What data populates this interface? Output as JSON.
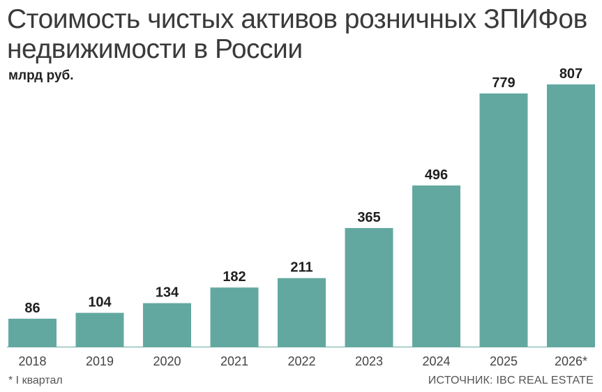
{
  "chart_data": {
    "type": "bar",
    "title": "Стоимость чистых активов розничных ЗПИФов недвижимости в России",
    "ylabel": "млрд руб.",
    "categories": [
      "2018",
      "2019",
      "2020",
      "2021",
      "2022",
      "2023",
      "2024",
      "2025",
      "2026*"
    ],
    "values": [
      86,
      104,
      134,
      182,
      211,
      365,
      496,
      779,
      807
    ],
    "data_labels": [
      "86",
      "104",
      "134",
      "182",
      "211",
      "365",
      "496",
      "779",
      "807"
    ],
    "ylim": [
      0,
      807
    ],
    "grid": false,
    "bar_color": "#63a8a0"
  },
  "footnote": "* I квартал",
  "source": "ИСТОЧНИК: IBC REAL ESTATE"
}
